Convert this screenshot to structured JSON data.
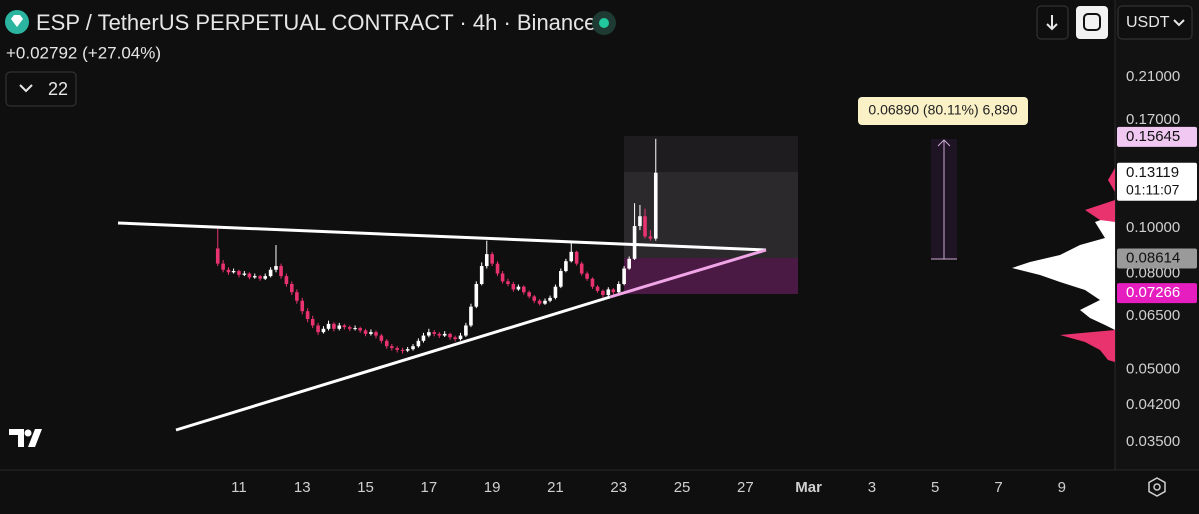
{
  "chart_data": {
    "type": "candlestick",
    "title": "ESP / TetherUS PERPETUAL CONTRACT · 4h · Binance",
    "subtitle": "+0.02792 (+27.04%)",
    "indicator_count": "22",
    "currency": "USDT",
    "measure_label": "0.06890 (80.11%) 6,890",
    "countdown": "01:11:07",
    "up_color": "#ffffff",
    "down_color": "#e8336f",
    "log_scale": true,
    "grid": false,
    "x": [
      10.33,
      10.5,
      10.67,
      10.83,
      11,
      11.17,
      11.33,
      11.5,
      11.67,
      11.83,
      12,
      12.17,
      12.33,
      12.5,
      12.67,
      12.83,
      13,
      13.17,
      13.33,
      13.5,
      13.67,
      13.83,
      14,
      14.17,
      14.33,
      14.5,
      14.67,
      14.83,
      15,
      15.17,
      15.33,
      15.5,
      15.67,
      15.83,
      16,
      16.17,
      16.33,
      16.5,
      16.67,
      16.83,
      17,
      17.17,
      17.33,
      17.5,
      17.67,
      17.83,
      18,
      18.17,
      18.33,
      18.5,
      18.67,
      18.83,
      19,
      19.17,
      19.33,
      19.5,
      19.67,
      19.83,
      20,
      20.17,
      20.33,
      20.5,
      20.67,
      20.83,
      21,
      21.17,
      21.33,
      21.5,
      21.67,
      21.83,
      22,
      22.17,
      22.33,
      22.5,
      22.67,
      22.83,
      23,
      23.17,
      23.33,
      23.5,
      23.67,
      23.83,
      24,
      24.17
    ],
    "open": [
      0.0905,
      0.084,
      0.0815,
      0.0805,
      0.081,
      0.0795,
      0.08,
      0.0785,
      0.079,
      0.078,
      0.079,
      0.0815,
      0.083,
      0.079,
      0.076,
      0.073,
      0.07,
      0.0665,
      0.064,
      0.062,
      0.06,
      0.061,
      0.0625,
      0.061,
      0.062,
      0.0615,
      0.061,
      0.0612,
      0.0605,
      0.0595,
      0.06,
      0.059,
      0.0575,
      0.056,
      0.0555,
      0.055,
      0.0548,
      0.0552,
      0.056,
      0.0575,
      0.059,
      0.06,
      0.0595,
      0.059,
      0.0595,
      0.0585,
      0.058,
      0.059,
      0.062,
      0.068,
      0.076,
      0.083,
      0.088,
      0.084,
      0.08,
      0.077,
      0.076,
      0.074,
      0.075,
      0.073,
      0.0715,
      0.07,
      0.069,
      0.07,
      0.071,
      0.075,
      0.081,
      0.085,
      0.089,
      0.084,
      0.08,
      0.078,
      0.075,
      0.0735,
      0.072,
      0.074,
      0.073,
      0.076,
      0.082,
      0.086,
      0.101,
      0.106,
      0.096,
      0.095
    ],
    "high": [
      0.1,
      0.0855,
      0.0825,
      0.082,
      0.0815,
      0.081,
      0.0805,
      0.08,
      0.0795,
      0.08,
      0.0825,
      0.092,
      0.084,
      0.08,
      0.077,
      0.074,
      0.071,
      0.0675,
      0.065,
      0.0628,
      0.0618,
      0.0635,
      0.063,
      0.0628,
      0.0625,
      0.062,
      0.062,
      0.0616,
      0.061,
      0.0608,
      0.0605,
      0.0595,
      0.058,
      0.0566,
      0.056,
      0.0556,
      0.0558,
      0.0566,
      0.0582,
      0.0598,
      0.061,
      0.0606,
      0.06,
      0.0603,
      0.0598,
      0.059,
      0.0598,
      0.0628,
      0.069,
      0.077,
      0.0845,
      0.094,
      0.089,
      0.085,
      0.081,
      0.078,
      0.0768,
      0.0758,
      0.0755,
      0.0736,
      0.072,
      0.0706,
      0.0708,
      0.0718,
      0.0758,
      0.082,
      0.086,
      0.093,
      0.0895,
      0.0848,
      0.0808,
      0.0785,
      0.0756,
      0.074,
      0.0748,
      0.0745,
      0.077,
      0.083,
      0.087,
      0.113,
      0.112,
      0.11,
      0.099,
      0.155
    ],
    "low": [
      0.083,
      0.0805,
      0.0795,
      0.08,
      0.0785,
      0.079,
      0.0778,
      0.078,
      0.0772,
      0.0775,
      0.0785,
      0.0805,
      0.078,
      0.075,
      0.072,
      0.069,
      0.0655,
      0.063,
      0.0612,
      0.0592,
      0.0596,
      0.0605,
      0.0602,
      0.0605,
      0.0608,
      0.0603,
      0.0605,
      0.0598,
      0.0588,
      0.059,
      0.0582,
      0.0568,
      0.0553,
      0.0548,
      0.0543,
      0.054,
      0.0544,
      0.0548,
      0.0556,
      0.057,
      0.0585,
      0.0588,
      0.0583,
      0.0586,
      0.0578,
      0.0573,
      0.0576,
      0.0586,
      0.0615,
      0.0675,
      0.0755,
      0.082,
      0.083,
      0.079,
      0.0762,
      0.0752,
      0.0732,
      0.0735,
      0.0722,
      0.0708,
      0.0692,
      0.0684,
      0.0686,
      0.0695,
      0.0705,
      0.0745,
      0.0805,
      0.0845,
      0.0832,
      0.0792,
      0.0772,
      0.0742,
      0.0728,
      0.0712,
      0.0716,
      0.0722,
      0.0725,
      0.0755,
      0.0815,
      0.0855,
      0.099,
      0.095,
      0.094,
      0.094
    ],
    "close": [
      0.084,
      0.0815,
      0.0805,
      0.081,
      0.0795,
      0.08,
      0.0785,
      0.079,
      0.078,
      0.079,
      0.0815,
      0.083,
      0.079,
      0.076,
      0.073,
      0.07,
      0.0665,
      0.064,
      0.062,
      0.06,
      0.061,
      0.0625,
      0.061,
      0.062,
      0.0615,
      0.061,
      0.0612,
      0.0605,
      0.0595,
      0.06,
      0.059,
      0.0575,
      0.056,
      0.0555,
      0.055,
      0.0548,
      0.0552,
      0.056,
      0.0575,
      0.059,
      0.06,
      0.0595,
      0.059,
      0.0595,
      0.0585,
      0.058,
      0.059,
      0.062,
      0.068,
      0.076,
      0.083,
      0.088,
      0.084,
      0.08,
      0.077,
      0.076,
      0.074,
      0.075,
      0.073,
      0.0715,
      0.07,
      0.069,
      0.07,
      0.071,
      0.075,
      0.081,
      0.085,
      0.089,
      0.084,
      0.08,
      0.078,
      0.075,
      0.0735,
      0.072,
      0.074,
      0.073,
      0.076,
      0.082,
      0.086,
      0.101,
      0.106,
      0.096,
      0.095,
      0.1312
    ],
    "xlim": [
      3.45,
      38.68
    ],
    "xticks": [
      11,
      13,
      15,
      17,
      19,
      21,
      23,
      25,
      27,
      {
        "value": 29,
        "label": "Mar"
      },
      {
        "value": 31,
        "label": "3"
      },
      {
        "value": 33,
        "label": "5"
      },
      {
        "value": 35,
        "label": "7"
      },
      {
        "value": 37,
        "label": "9"
      }
    ],
    "ylim": [
      0.0308,
      0.3064
    ],
    "yticks": [
      {
        "value": 0.21,
        "label": "0.21000"
      },
      {
        "value": 0.17,
        "label": "0.17000"
      },
      {
        "value": 0.1,
        "label": "0.10000"
      },
      {
        "value": 0.08,
        "label": "0.08000"
      },
      {
        "value": 0.065,
        "label": "0.06500"
      },
      {
        "value": 0.05,
        "label": "0.05000"
      },
      {
        "value": 0.042,
        "label": "0.04200"
      },
      {
        "value": 0.035,
        "label": "0.03500"
      }
    ],
    "price_labels": [
      {
        "value": 0.15645,
        "label": "0.15645",
        "color": "#f0c8f2",
        "text_color": "#111111"
      },
      {
        "value": 0.13119,
        "label": "0.13119",
        "color": "#ffffff",
        "text_color": "#111111"
      },
      {
        "value": 0.08614,
        "label": "0.08614",
        "color": "#9a9a9a",
        "text_color": "#111111"
      },
      {
        "value": 0.07266,
        "label": "0.07266",
        "color": "#e61ec0",
        "text_color": "#ffffff"
      }
    ]
  }
}
